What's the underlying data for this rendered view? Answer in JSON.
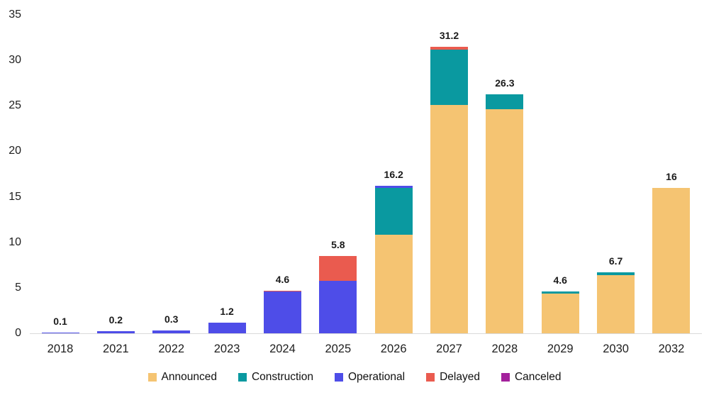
{
  "chart_data": {
    "type": "bar",
    "stacked": true,
    "title": "",
    "xlabel": "",
    "ylabel": "",
    "categories": [
      "2018",
      "2021",
      "2022",
      "2023",
      "2024",
      "2025",
      "2026",
      "2027",
      "2028",
      "2029",
      "2030",
      "2032"
    ],
    "series": [
      {
        "name": "Announced",
        "color": "#F5C472",
        "values": [
          0,
          0,
          0,
          0,
          0,
          0,
          10.8,
          25.1,
          24.6,
          4.4,
          6.4,
          16
        ]
      },
      {
        "name": "Construction",
        "color": "#0A99A0",
        "values": [
          0,
          0,
          0,
          0,
          0,
          0,
          5.2,
          6.1,
          1.7,
          0.2,
          0.3,
          0
        ]
      },
      {
        "name": "Operational",
        "color": "#4E4DE8",
        "values": [
          0.1,
          0.2,
          0.3,
          1.2,
          4.6,
          5.8,
          0.2,
          0,
          0,
          0,
          0,
          0
        ]
      },
      {
        "name": "Delayed",
        "color": "#EA5B4F",
        "values": [
          0,
          0,
          0,
          0,
          0.1,
          2.7,
          0,
          0.3,
          0,
          0,
          0,
          0
        ]
      },
      {
        "name": "Canceled",
        "color": "#A3219C",
        "values": [
          0,
          0,
          0,
          0,
          0,
          0,
          0,
          0,
          0,
          0,
          0,
          0
        ]
      }
    ],
    "bar_labels": [
      "0.1",
      "0.2",
      "0.3",
      "1.2",
      "4.6",
      "5.8",
      "16.2",
      "31.2",
      "26.3",
      "4.6",
      "6.7",
      "16"
    ],
    "ylim": [
      0,
      35
    ],
    "yticks": [
      "0",
      "5",
      "10",
      "15",
      "20",
      "25",
      "30",
      "35"
    ],
    "grid": false,
    "legend_position": "bottom",
    "axis_line_color": "#d9d9d9"
  }
}
